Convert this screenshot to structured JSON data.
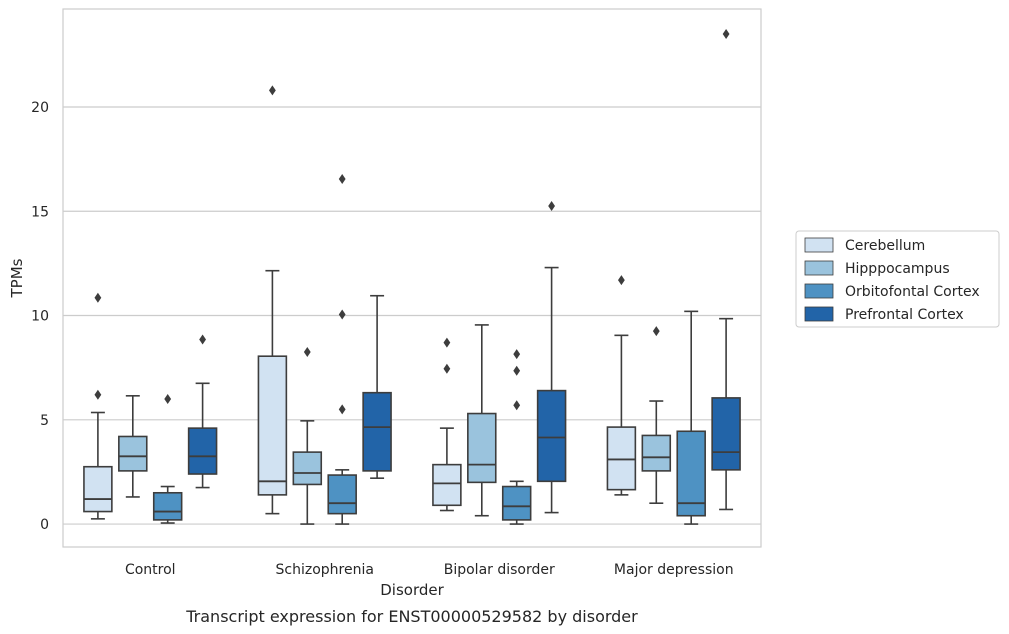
{
  "chart_data": {
    "type": "box",
    "title": "",
    "caption": "Transcript expression for ENST00000529582 by disorder",
    "xlabel": "Disorder",
    "ylabel": "TPMs",
    "ylim": [
      -1.1,
      24.7
    ],
    "yticks": [
      0,
      5,
      10,
      15,
      20
    ],
    "grid": true,
    "legend_position": "right",
    "categories": [
      "Control",
      "Schizophrenia",
      "Bipolar disorder",
      "Major depression"
    ],
    "series": [
      {
        "name": "Cerebellum",
        "color": "#d1e2f2",
        "boxes": [
          {
            "whisker_low": 0.25,
            "q1": 0.6,
            "median": 1.2,
            "q3": 2.75,
            "whisker_high": 5.35,
            "outliers": [
              6.2,
              10.85
            ]
          },
          {
            "whisker_low": 0.5,
            "q1": 1.4,
            "median": 2.05,
            "q3": 8.05,
            "whisker_high": 12.15,
            "outliers": [
              20.8
            ]
          },
          {
            "whisker_low": 0.65,
            "q1": 0.9,
            "median": 1.95,
            "q3": 2.85,
            "whisker_high": 4.6,
            "outliers": [
              7.45,
              8.7
            ]
          },
          {
            "whisker_low": 1.4,
            "q1": 1.65,
            "median": 3.1,
            "q3": 4.65,
            "whisker_high": 9.05,
            "outliers": [
              11.7
            ]
          }
        ]
      },
      {
        "name": "Hipppocampus",
        "color": "#9ac3dd",
        "boxes": [
          {
            "whisker_low": 1.3,
            "q1": 2.55,
            "median": 3.25,
            "q3": 4.2,
            "whisker_high": 6.15,
            "outliers": []
          },
          {
            "whisker_low": 0.0,
            "q1": 1.9,
            "median": 2.45,
            "q3": 3.45,
            "whisker_high": 4.95,
            "outliers": [
              8.25
            ]
          },
          {
            "whisker_low": 0.4,
            "q1": 2.0,
            "median": 2.85,
            "q3": 5.3,
            "whisker_high": 9.55,
            "outliers": []
          },
          {
            "whisker_low": 1.0,
            "q1": 2.55,
            "median": 3.2,
            "q3": 4.25,
            "whisker_high": 5.9,
            "outliers": [
              9.25
            ]
          }
        ]
      },
      {
        "name": "Orbitofontal Cortex",
        "color": "#4e92c3",
        "boxes": [
          {
            "whisker_low": 0.05,
            "q1": 0.2,
            "median": 0.6,
            "q3": 1.5,
            "whisker_high": 1.8,
            "outliers": [
              6.0
            ]
          },
          {
            "whisker_low": 0.0,
            "q1": 0.5,
            "median": 1.0,
            "q3": 2.35,
            "whisker_high": 2.6,
            "outliers": [
              5.5,
              10.05,
              16.55
            ]
          },
          {
            "whisker_low": 0.0,
            "q1": 0.2,
            "median": 0.85,
            "q3": 1.8,
            "whisker_high": 2.05,
            "outliers": [
              5.7,
              7.35,
              8.15
            ]
          },
          {
            "whisker_low": 0.0,
            "q1": 0.4,
            "median": 1.0,
            "q3": 4.45,
            "whisker_high": 10.2,
            "outliers": []
          }
        ]
      },
      {
        "name": "Prefrontal Cortex",
        "color": "#2264a8",
        "boxes": [
          {
            "whisker_low": 1.75,
            "q1": 2.4,
            "median": 3.25,
            "q3": 4.6,
            "whisker_high": 6.75,
            "outliers": [
              8.85
            ]
          },
          {
            "whisker_low": 2.2,
            "q1": 2.55,
            "median": 4.65,
            "q3": 6.3,
            "whisker_high": 10.95,
            "outliers": []
          },
          {
            "whisker_low": 0.55,
            "q1": 2.05,
            "median": 4.15,
            "q3": 6.4,
            "whisker_high": 12.3,
            "outliers": [
              15.25
            ]
          },
          {
            "whisker_low": 0.7,
            "q1": 2.6,
            "median": 3.45,
            "q3": 6.05,
            "whisker_high": 9.85,
            "outliers": [
              23.5
            ]
          }
        ]
      }
    ]
  }
}
